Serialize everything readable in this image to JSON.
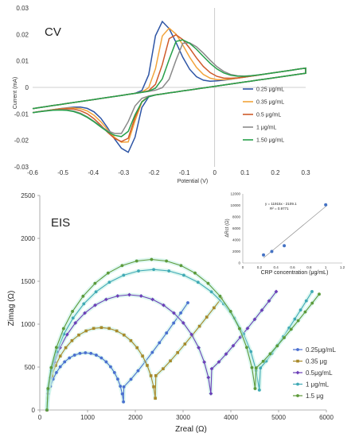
{
  "chart_data": [
    {
      "id": "cv",
      "type": "line",
      "title": "CV",
      "xlabel": "Potential  (V)",
      "ylabel": "Current  (mA)",
      "xlim": [
        -0.6,
        0.3
      ],
      "ylim": [
        -0.03,
        0.03
      ],
      "xticks": [
        -0.6,
        -0.5,
        -0.4,
        -0.3,
        -0.2,
        -0.1,
        0,
        0.1,
        0.2,
        0.3
      ],
      "yticks": [
        -0.03,
        -0.02,
        -0.01,
        0,
        0.01,
        0.02,
        0.03
      ],
      "xtick_labels": [
        "-0.6",
        "-0.5",
        "-0.4",
        "-0.3",
        "-0.2",
        "-0.1",
        "0",
        "0.1",
        "0.2",
        "0.3"
      ],
      "ytick_labels": [
        "-0.03",
        "-0.02",
        "-0.01",
        "0",
        "0.01",
        "0.02",
        "0.03"
      ],
      "grid": false,
      "legend": "right",
      "series": [
        {
          "name": "0.25 μg/mL",
          "color": "#2e55a5",
          "anodic_peak": [
            -0.18,
            0.025
          ],
          "cathodic_peak": [
            -0.28,
            -0.0245
          ]
        },
        {
          "name": "0.35 μg/mL",
          "color": "#f2a33a",
          "anodic_peak": [
            -0.16,
            0.0225
          ],
          "cathodic_peak": [
            -0.29,
            -0.021
          ]
        },
        {
          "name": "0.5 μg/mL",
          "color": "#cf5a2a",
          "anodic_peak": [
            -0.14,
            0.02
          ],
          "cathodic_peak": [
            -0.295,
            -0.0205
          ]
        },
        {
          "name": "1 μg/mL",
          "color": "#8a8a8a",
          "anodic_peak": [
            -0.1,
            0.017
          ],
          "cathodic_peak": [
            -0.31,
            -0.0175
          ]
        },
        {
          "name": "1.50 μg/mL",
          "color": "#27a04a",
          "anodic_peak": [
            -0.12,
            0.018
          ],
          "cathodic_peak": [
            -0.3,
            -0.0185
          ]
        }
      ]
    },
    {
      "id": "eis",
      "type": "scatter",
      "title": "EIS",
      "xlabel": "Zreal (Ω)",
      "ylabel": "Zimag (Ω)",
      "xlim": [
        0,
        6000
      ],
      "ylim": [
        0,
        2500
      ],
      "xticks": [
        0,
        1000,
        2000,
        3000,
        4000,
        5000,
        6000
      ],
      "yticks": [
        0,
        500,
        1000,
        1500,
        2000,
        2500
      ],
      "xtick_labels": [
        "0",
        "1000",
        "2000",
        "3000",
        "4000",
        "5000",
        "6000"
      ],
      "ytick_labels": [
        "0",
        "500",
        "1000",
        "1500",
        "2000",
        "2500"
      ],
      "grid": false,
      "legend": "right",
      "series": [
        {
          "name": "0.25μg/mL",
          "color": "#4a6fd0",
          "marker": "circle",
          "start": 150,
          "end": 1760,
          "peak": 680,
          "tail_end": [
            3100,
            1250
          ]
        },
        {
          "name": "0.35 μg",
          "color": "#a8892a",
          "marker": "square",
          "start": 150,
          "end": 2430,
          "peak": 980,
          "tail_end": [
            3800,
            1300
          ]
        },
        {
          "name": "0.5μg/mL",
          "color": "#6c3fb8",
          "marker": "diamond",
          "start": 150,
          "end": 3600,
          "peak": 1370,
          "tail_end": [
            4950,
            1380
          ]
        },
        {
          "name": "1 μg/mL",
          "color": "#3fa9b5",
          "marker": "circle",
          "start": 150,
          "end": 4620,
          "peak": 1670,
          "tail_end": [
            5700,
            1380
          ]
        },
        {
          "name": "1.5 μg",
          "color": "#5d9a3a",
          "marker": "circle",
          "start": 150,
          "end": 4530,
          "peak": 1790,
          "tail_end": [
            5850,
            1350
          ]
        }
      ]
    },
    {
      "id": "calibration",
      "type": "scatter",
      "xlabel": "CRP concentration (μg/mL)",
      "ylabel": "ΔRct (Ω)",
      "xlim": [
        0,
        1.2
      ],
      "ylim": [
        0,
        12000
      ],
      "xticks": [
        0,
        0.2,
        0.4,
        0.6,
        0.8,
        1,
        1.2
      ],
      "yticks": [
        0,
        2000,
        4000,
        6000,
        8000,
        10000,
        12000
      ],
      "xtick_labels": [
        "0",
        "0.2",
        "0.4",
        "0.6",
        "0.8",
        "1",
        "1.2"
      ],
      "ytick_labels": [
        "0",
        "2000",
        "4000",
        "6000",
        "8000",
        "10000",
        "12000"
      ],
      "equation": "y = 11915x - 2109.1",
      "r2": "R² = 0.9771",
      "x": [
        0.25,
        0.35,
        0.5,
        1.0
      ],
      "y": [
        1400,
        2000,
        3000,
        10100
      ],
      "fit": {
        "slope": 11915,
        "intercept": -2109.1
      },
      "color": "#4472c4"
    }
  ]
}
